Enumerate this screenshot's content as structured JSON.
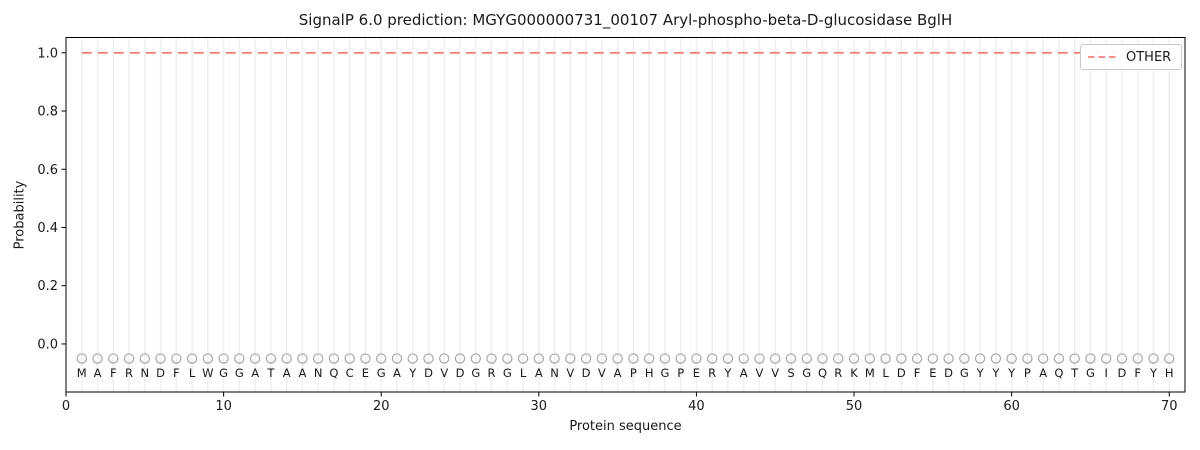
{
  "chart_data": {
    "type": "line",
    "title": "SignalP 6.0 prediction: MGYG000000731_00107 Aryl-phospho-beta-D-glucosidase BglH",
    "xlabel": "Protein sequence",
    "ylabel": "Probability",
    "axes": {
      "xlim": [
        0,
        71
      ],
      "ylim": [
        -0.165,
        1.0525
      ],
      "x_tick_values": [
        0,
        10,
        20,
        30,
        40,
        50,
        60,
        70
      ],
      "x_tick_labels": [
        "0",
        "10",
        "20",
        "30",
        "40",
        "50",
        "60",
        "70"
      ],
      "y_tick_values": [
        0.0,
        0.2,
        0.4,
        0.6,
        0.8,
        1.0
      ],
      "y_tick_labels": [
        "0.0",
        "0.2",
        "0.4",
        "0.6",
        "0.8",
        "1.0"
      ],
      "grid": "light vertical gridline at every residue position"
    },
    "legend": {
      "position": "upper right",
      "entries": [
        {
          "label": "OTHER",
          "color": "#f08080",
          "line_style": "dashed"
        }
      ]
    },
    "sequence": "MAFRNDFLWGGATAANQCEGAYDVDGRGLANVDVAPHGPERYAVVSGQRKMLDFEDGYYYPAQTGIDFYH",
    "series": [
      {
        "name": "OTHER",
        "line_style": "dashed",
        "color": "#f08080",
        "x": [
          1,
          2,
          3,
          4,
          5,
          6,
          7,
          8,
          9,
          10,
          11,
          12,
          13,
          14,
          15,
          16,
          17,
          18,
          19,
          20,
          21,
          22,
          23,
          24,
          25,
          26,
          27,
          28,
          29,
          30,
          31,
          32,
          33,
          34,
          35,
          36,
          37,
          38,
          39,
          40,
          41,
          42,
          43,
          44,
          45,
          46,
          47,
          48,
          49,
          50,
          51,
          52,
          53,
          54,
          55,
          56,
          57,
          58,
          59,
          60,
          61,
          62,
          63,
          64,
          65,
          66,
          67,
          68,
          69,
          70
        ],
        "values": [
          1.0,
          1.0,
          1.0,
          1.0,
          1.0,
          1.0,
          1.0,
          1.0,
          1.0,
          1.0,
          1.0,
          1.0,
          1.0,
          1.0,
          1.0,
          1.0,
          1.0,
          1.0,
          1.0,
          1.0,
          1.0,
          1.0,
          1.0,
          1.0,
          1.0,
          1.0,
          1.0,
          1.0,
          1.0,
          1.0,
          1.0,
          1.0,
          1.0,
          1.0,
          1.0,
          1.0,
          1.0,
          1.0,
          1.0,
          1.0,
          1.0,
          1.0,
          1.0,
          1.0,
          1.0,
          1.0,
          1.0,
          1.0,
          1.0,
          1.0,
          1.0,
          1.0,
          1.0,
          1.0,
          1.0,
          1.0,
          1.0,
          1.0,
          1.0,
          1.0,
          1.0,
          1.0,
          1.0,
          1.0,
          1.0,
          1.0,
          1.0,
          1.0,
          1.0,
          1.0
        ]
      }
    ],
    "residue_markers": {
      "shape": "open-circle",
      "color": "#a6a6a6",
      "y": -0.05,
      "at_each_residue": true
    },
    "residue_label_y": -0.1,
    "colors": {
      "background": "#ffffff",
      "frame": "#000000",
      "grid": "#efefef",
      "text": "#1a1a1a",
      "marker": "#a6a6a6",
      "other_line": "#f08080",
      "legend_border": "#c9c9c9"
    }
  }
}
